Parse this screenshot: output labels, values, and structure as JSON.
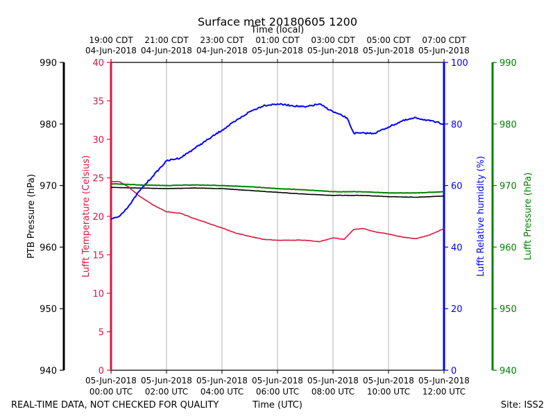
{
  "chart_data": {
    "type": "line",
    "title": "Surface met 20180605 1200",
    "top_axis_label": "Time (local)",
    "xlabel": "Time (UTC)",
    "x_unit": "hours since 05-Jun-2018 00:00 UTC",
    "xlim": [
      0,
      12
    ],
    "bottom_ticks": [
      {
        "x": 0,
        "line1": "05-Jun-2018",
        "line2": "00:00 UTC"
      },
      {
        "x": 2,
        "line1": "05-Jun-2018",
        "line2": "02:00 UTC"
      },
      {
        "x": 4,
        "line1": "05-Jun-2018",
        "line2": "04:00 UTC"
      },
      {
        "x": 6,
        "line1": "05-Jun-2018",
        "line2": "06:00 UTC"
      },
      {
        "x": 8,
        "line1": "05-Jun-2018",
        "line2": "08:00 UTC"
      },
      {
        "x": 10,
        "line1": "05-Jun-2018",
        "line2": "10:00 UTC"
      },
      {
        "x": 12,
        "line1": "05-Jun-2018",
        "line2": "12:00 UTC"
      }
    ],
    "top_ticks": [
      {
        "x": 0,
        "line1": "19:00 CDT",
        "line2": "04-Jun-2018"
      },
      {
        "x": 2,
        "line1": "21:00 CDT",
        "line2": "04-Jun-2018"
      },
      {
        "x": 4,
        "line1": "23:00 CDT",
        "line2": "04-Jun-2018"
      },
      {
        "x": 6,
        "line1": "01:00 CDT",
        "line2": "05-Jun-2018"
      },
      {
        "x": 8,
        "line1": "03:00 CDT",
        "line2": "05-Jun-2018"
      },
      {
        "x": 10,
        "line1": "05:00 CDT",
        "line2": "05-Jun-2018"
      },
      {
        "x": 12,
        "line1": "07:00 CDT",
        "line2": "05-Jun-2018"
      }
    ],
    "grid": true,
    "axes": [
      {
        "id": "ptb",
        "label": "PTB Pressure (hPa)",
        "color": "#000000",
        "range": [
          940,
          990
        ],
        "ticks": [
          940,
          950,
          960,
          970,
          980,
          990
        ]
      },
      {
        "id": "temp",
        "label": "Lufft Temperature (Celsius)",
        "color": "#dc143c",
        "range": [
          0,
          40
        ],
        "ticks": [
          0,
          5,
          10,
          15,
          20,
          25,
          30,
          35,
          40
        ]
      },
      {
        "id": "rh",
        "label": "Lufft Relative humidity (%)",
        "color": "#0000ff",
        "range": [
          0,
          100
        ],
        "ticks": [
          0,
          20,
          40,
          60,
          80,
          100
        ]
      },
      {
        "id": "lp",
        "label": "Lufft Pressure (hPa)",
        "color": "#008000",
        "range": [
          940,
          990
        ],
        "ticks": [
          940,
          950,
          960,
          970,
          980,
          990
        ]
      }
    ],
    "series": [
      {
        "name": "PTB Pressure",
        "axis": "ptb",
        "color": "#000000",
        "x": [
          0,
          1,
          2,
          3,
          4,
          5,
          6,
          7,
          8,
          9,
          10,
          11,
          12
        ],
        "values": [
          969.7,
          969.6,
          969.5,
          969.6,
          969.5,
          969.2,
          968.9,
          968.6,
          968.4,
          968.4,
          968.2,
          968.1,
          968.3
        ]
      },
      {
        "name": "Lufft Temperature",
        "axis": "temp",
        "color": "#dc143c",
        "x": [
          0,
          0.3,
          0.6,
          1.0,
          1.5,
          2.0,
          2.5,
          3.0,
          3.5,
          4.0,
          4.5,
          5.0,
          5.5,
          6.0,
          6.5,
          7.0,
          7.5,
          8.0,
          8.4,
          8.75,
          9.1,
          9.5,
          10.0,
          10.5,
          11.0,
          11.5,
          12.0
        ],
        "values": [
          24.5,
          24.5,
          23.9,
          22.7,
          21.5,
          20.6,
          20.4,
          19.7,
          19.1,
          18.5,
          17.8,
          17.4,
          17.0,
          16.9,
          16.9,
          16.9,
          16.7,
          17.2,
          17.0,
          18.3,
          18.4,
          18.0,
          17.7,
          17.3,
          17.1,
          17.6,
          18.4
        ]
      },
      {
        "name": "Lufft Relative humidity",
        "axis": "rh",
        "color": "#0000ff",
        "x": [
          0,
          0.3,
          0.7,
          1.0,
          1.5,
          2.0,
          2.5,
          3.0,
          3.5,
          4.0,
          4.5,
          5.0,
          5.5,
          6.0,
          6.5,
          7.0,
          7.5,
          8.0,
          8.5,
          8.75,
          9.0,
          9.5,
          10.0,
          10.5,
          11.0,
          11.5,
          12.0
        ],
        "values": [
          49,
          50,
          54,
          58,
          63,
          68,
          69,
          72,
          75,
          78,
          81,
          84,
          86,
          86.5,
          86,
          85.5,
          86.5,
          84,
          82,
          77,
          77,
          77,
          79,
          81,
          82,
          81,
          80
        ]
      },
      {
        "name": "Lufft Pressure",
        "axis": "lp",
        "color": "#008000",
        "x": [
          0,
          1,
          2,
          3,
          4,
          5,
          6,
          7,
          8,
          9,
          10,
          11,
          12
        ],
        "values": [
          970.3,
          970.1,
          970.0,
          970.1,
          970.0,
          969.8,
          969.5,
          969.3,
          969.0,
          969.0,
          968.8,
          968.8,
          969.0
        ]
      }
    ],
    "footer_left": "REAL-TIME DATA, NOT CHECKED FOR QUALITY",
    "footer_right": "Site: ISS2"
  }
}
